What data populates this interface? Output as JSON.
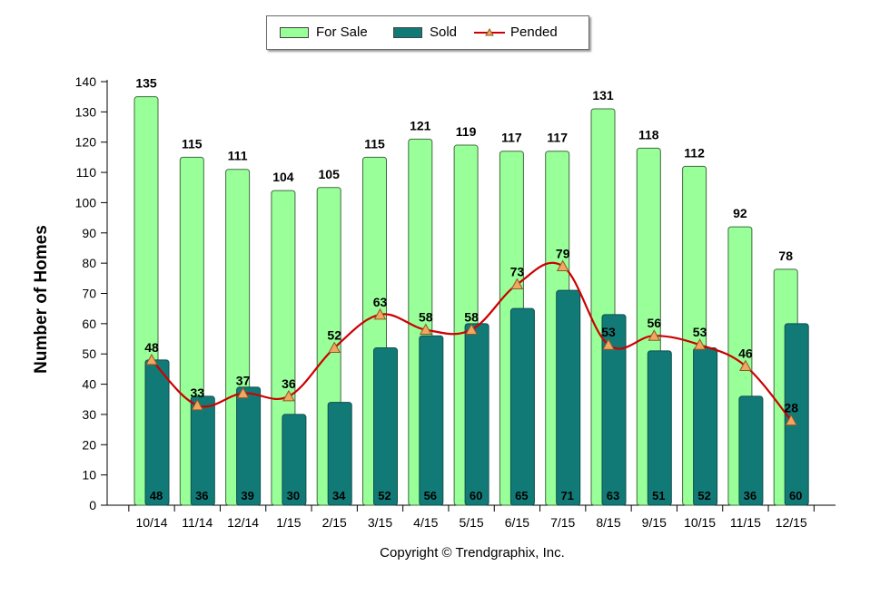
{
  "chart_data": {
    "type": "bar",
    "title": "",
    "xlabel": "",
    "ylabel": "Number of Homes",
    "ylim": [
      0,
      140
    ],
    "yticks": [
      0,
      10,
      20,
      30,
      40,
      50,
      60,
      70,
      80,
      90,
      100,
      110,
      120,
      130,
      140
    ],
    "categories": [
      "10/14",
      "11/14",
      "12/14",
      "1/15",
      "2/15",
      "3/15",
      "4/15",
      "5/15",
      "6/15",
      "7/15",
      "8/15",
      "9/15",
      "10/15",
      "11/15",
      "12/15"
    ],
    "series": [
      {
        "name": "For Sale",
        "type": "bar",
        "color": "#99ff99",
        "values": [
          135,
          115,
          111,
          104,
          105,
          115,
          121,
          119,
          117,
          117,
          131,
          118,
          112,
          92,
          78
        ]
      },
      {
        "name": "Sold",
        "type": "bar",
        "color": "#127a76",
        "values": [
          48,
          36,
          39,
          30,
          34,
          52,
          56,
          60,
          65,
          71,
          63,
          51,
          52,
          36,
          60
        ]
      },
      {
        "name": "Pended",
        "type": "line",
        "color": "#cc0000",
        "marker_color": "#f2a660",
        "values": [
          48,
          33,
          37,
          36,
          52,
          63,
          58,
          58,
          73,
          79,
          53,
          56,
          53,
          46,
          28
        ]
      }
    ],
    "legend_position": "top-center",
    "grid": false
  },
  "legend": {
    "for_sale": "For Sale",
    "sold": "Sold",
    "pended": "Pended"
  },
  "footer": {
    "copyright": "Copyright © Trendgraphix, Inc."
  }
}
